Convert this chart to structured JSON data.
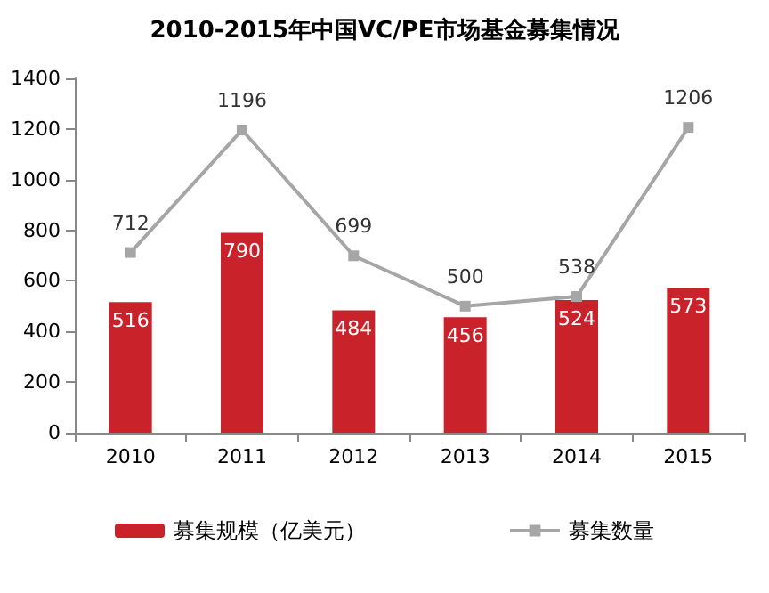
{
  "chart_data": {
    "type": "bar",
    "title": "2010-2015年中国VC/PE市场基金募集情况",
    "categories": [
      "2010",
      "2011",
      "2012",
      "2013",
      "2014",
      "2015"
    ],
    "series": [
      {
        "name": "募集规模（亿美元）",
        "color": "#c9222a",
        "values": [
          516,
          790,
          484,
          456,
          524,
          573
        ]
      },
      {
        "name": "募集数量",
        "type": "line",
        "color": "#a6a6a6",
        "marker": "square",
        "values": [
          712,
          1196,
          699,
          500,
          538,
          1206
        ]
      }
    ],
    "ylim": [
      0,
      1400
    ],
    "yticks": [
      0,
      200,
      400,
      600,
      800,
      1000,
      1200,
      1400
    ],
    "data_labels": true,
    "legend": "bottom",
    "grid": false
  }
}
